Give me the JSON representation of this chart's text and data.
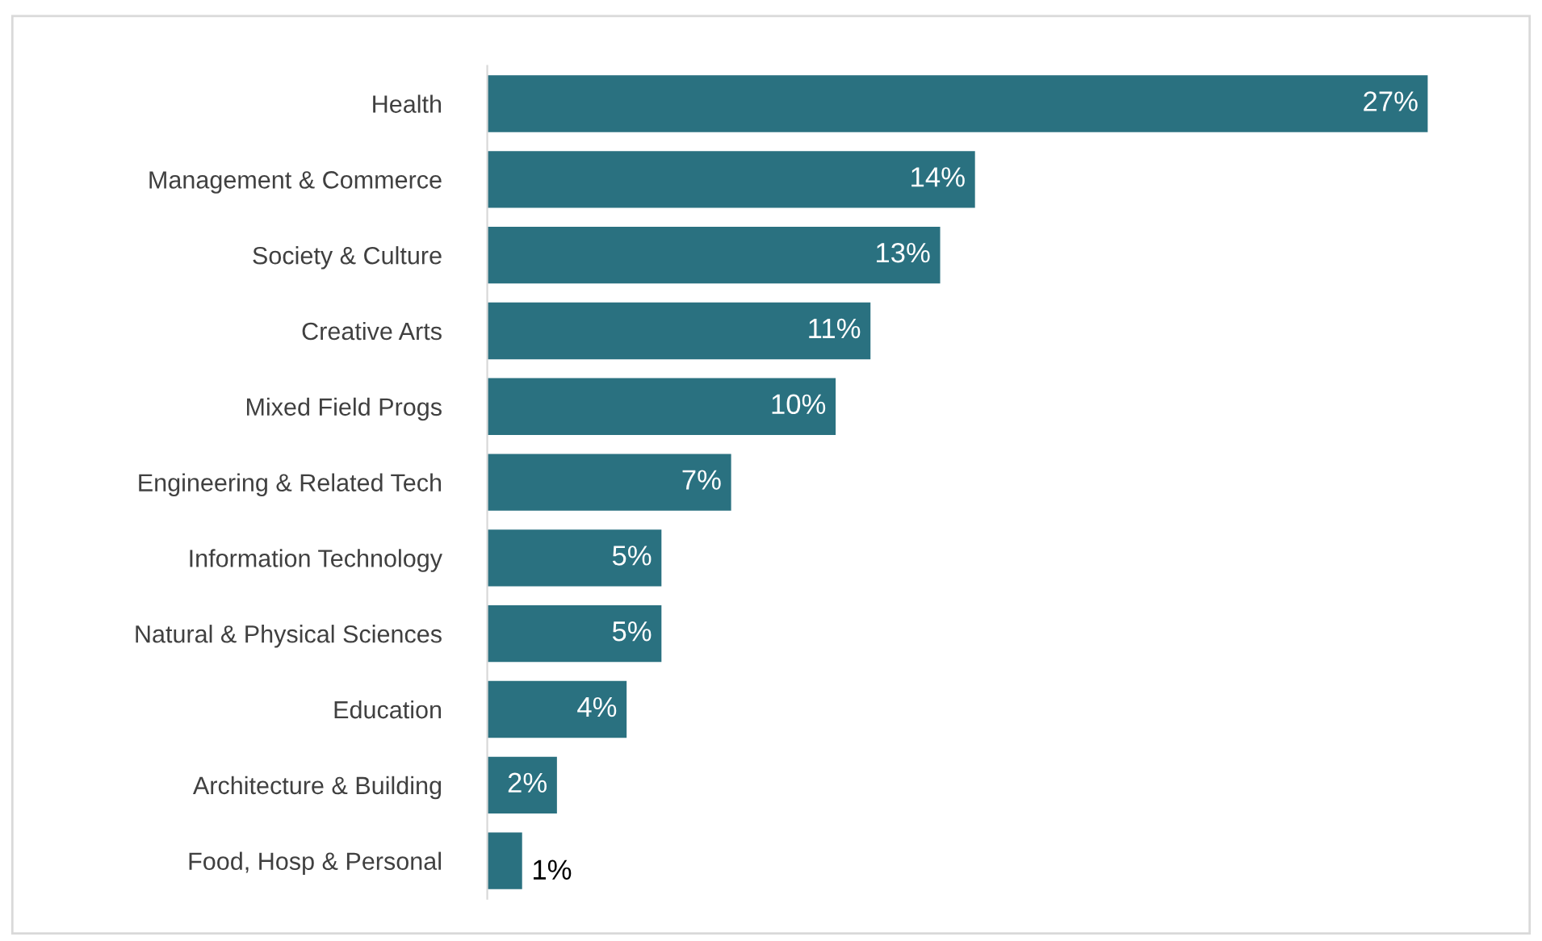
{
  "chart_data": {
    "type": "bar",
    "orientation": "horizontal",
    "categories": [
      "Health",
      "Management & Commerce",
      "Society & Culture",
      "Creative Arts",
      "Mixed Field Progs",
      "Engineering & Related Tech",
      "Information Technology",
      "Natural & Physical Sciences",
      "Education",
      "Architecture & Building",
      "Food, Hosp & Personal"
    ],
    "values": [
      27,
      14,
      13,
      11,
      10,
      7,
      5,
      5,
      4,
      2,
      1
    ],
    "value_labels": [
      "27%",
      "14%",
      "13%",
      "11%",
      "10%",
      "7%",
      "5%",
      "5%",
      "4%",
      "2%",
      "1%"
    ],
    "color": "#2a7180",
    "grid": false,
    "legend": false
  }
}
